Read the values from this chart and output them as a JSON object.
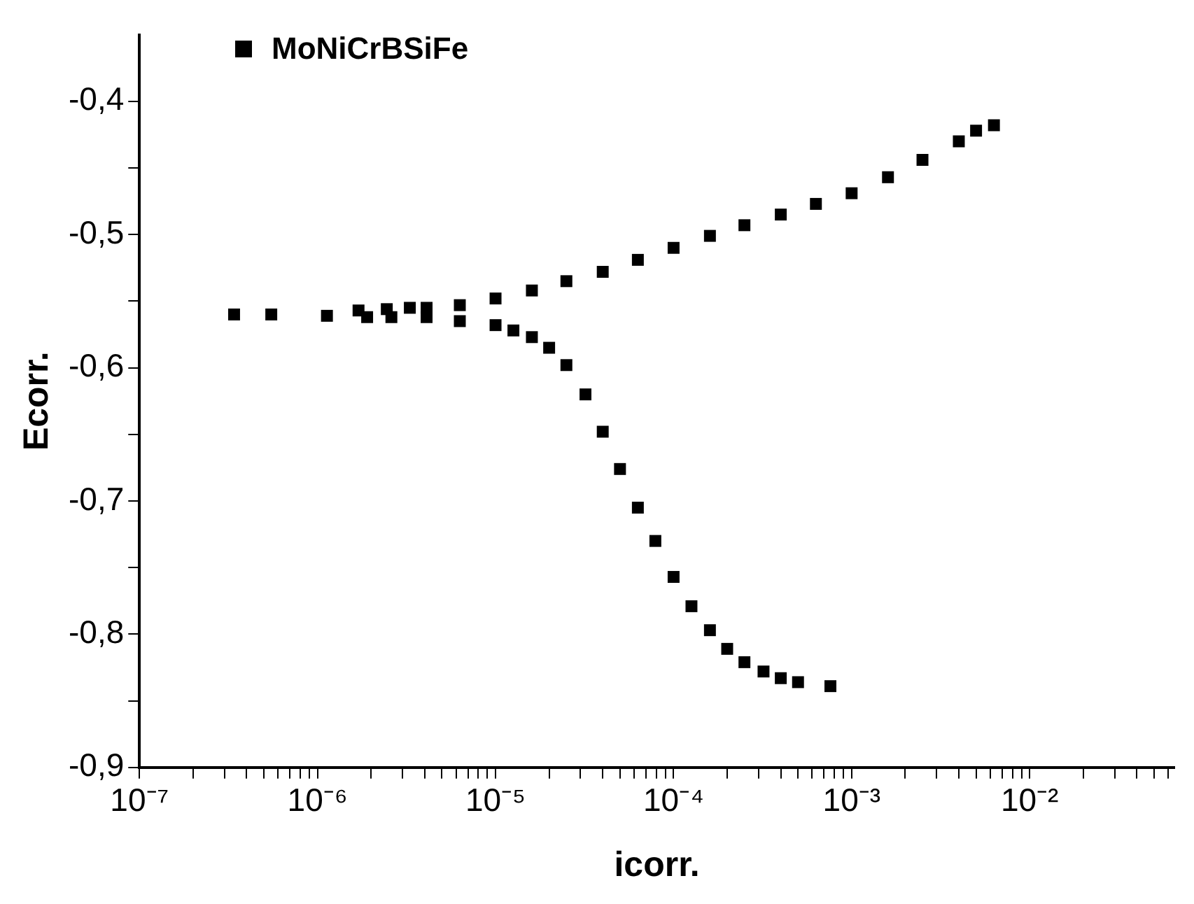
{
  "chart_data": {
    "type": "scatter",
    "xlabel": "icorr.",
    "ylabel": "Ecorr.",
    "log": "x",
    "marker": "square",
    "legend": "top left",
    "grid": false,
    "xlim": [
      1e-07,
      0.065
    ],
    "ylim": [
      -0.9,
      -0.35
    ],
    "xticks": [
      {
        "value": 1e-07,
        "label": "10⁻⁷"
      },
      {
        "value": 2e-07,
        "label": null
      },
      {
        "value": 3e-07,
        "label": null
      },
      {
        "value": 4e-07,
        "label": null
      },
      {
        "value": 5e-07,
        "label": null
      },
      {
        "value": 6e-07,
        "label": null
      },
      {
        "value": 7e-07,
        "label": null
      },
      {
        "value": 8e-07,
        "label": null
      },
      {
        "value": 9e-07,
        "label": null
      },
      {
        "value": 1e-06,
        "label": "10⁻⁶"
      },
      {
        "value": 2e-06,
        "label": null
      },
      {
        "value": 3e-06,
        "label": null
      },
      {
        "value": 4e-06,
        "label": null
      },
      {
        "value": 5e-06,
        "label": null
      },
      {
        "value": 6e-06,
        "label": null
      },
      {
        "value": 7e-06,
        "label": null
      },
      {
        "value": 8e-06,
        "label": null
      },
      {
        "value": 9e-06,
        "label": null
      },
      {
        "value": 1e-05,
        "label": "10⁻⁵"
      },
      {
        "value": 2e-05,
        "label": null
      },
      {
        "value": 3e-05,
        "label": null
      },
      {
        "value": 4e-05,
        "label": null
      },
      {
        "value": 5e-05,
        "label": null
      },
      {
        "value": 6e-05,
        "label": null
      },
      {
        "value": 7e-05,
        "label": null
      },
      {
        "value": 8e-05,
        "label": null
      },
      {
        "value": 9e-05,
        "label": null
      },
      {
        "value": 0.0001,
        "label": "10⁻⁴"
      },
      {
        "value": 0.0002,
        "label": null
      },
      {
        "value": 0.0003,
        "label": null
      },
      {
        "value": 0.0004,
        "label": null
      },
      {
        "value": 0.0005,
        "label": null
      },
      {
        "value": 0.0006,
        "label": null
      },
      {
        "value": 0.0007,
        "label": null
      },
      {
        "value": 0.0008,
        "label": null
      },
      {
        "value": 0.0009,
        "label": null
      },
      {
        "value": 0.001,
        "label": "10⁻³"
      },
      {
        "value": 0.002,
        "label": null
      },
      {
        "value": 0.003,
        "label": null
      },
      {
        "value": 0.004,
        "label": null
      },
      {
        "value": 0.005,
        "label": null
      },
      {
        "value": 0.006,
        "label": null
      },
      {
        "value": 0.007,
        "label": null
      },
      {
        "value": 0.008,
        "label": null
      },
      {
        "value": 0.009,
        "label": null
      },
      {
        "value": 0.01,
        "label": "10⁻²"
      },
      {
        "value": 0.02,
        "label": null
      },
      {
        "value": 0.03,
        "label": null
      },
      {
        "value": 0.04,
        "label": null
      },
      {
        "value": 0.05,
        "label": null
      },
      {
        "value": 0.06,
        "label": null
      }
    ],
    "yticks": [
      {
        "value": -0.9,
        "label": "-0,9"
      },
      {
        "value": -0.85,
        "label": null
      },
      {
        "value": -0.8,
        "label": "-0,8"
      },
      {
        "value": -0.75,
        "label": null
      },
      {
        "value": -0.7,
        "label": "-0,7"
      },
      {
        "value": -0.65,
        "label": null
      },
      {
        "value": -0.6,
        "label": "-0,6"
      },
      {
        "value": -0.55,
        "label": null
      },
      {
        "value": -0.5,
        "label": "-0,5"
      },
      {
        "value": -0.45,
        "label": null
      },
      {
        "value": -0.4,
        "label": "-0,4"
      }
    ],
    "series": [
      {
        "name": "MoNiCrBSiFe",
        "color": "#000000",
        "x": [
          3.4e-07,
          5.5e-07,
          1.13e-06,
          1.7e-06,
          1.9e-06,
          2.45e-06,
          2.6e-06,
          3.3e-06,
          4.1e-06,
          6.3e-06,
          1e-05,
          1.6e-05,
          2.5e-05,
          4e-05,
          6.3e-05,
          0.0001,
          0.00016,
          0.00025,
          0.0004,
          0.00063,
          0.001,
          0.0016,
          0.0025,
          0.004,
          0.005,
          0.0063,
          4.1e-06,
          6.3e-06,
          1e-05,
          1.26e-05,
          1.6e-05,
          2e-05,
          2.5e-05,
          3.2e-05,
          4e-05,
          5e-05,
          6.3e-05,
          7.9e-05,
          0.0001,
          0.000126,
          0.00016,
          0.0002,
          0.00025,
          0.00032,
          0.0004,
          0.0005,
          0.00076
        ],
        "values": [
          -0.56,
          -0.56,
          -0.561,
          -0.557,
          -0.562,
          -0.556,
          -0.562,
          -0.555,
          -0.555,
          -0.553,
          -0.548,
          -0.542,
          -0.535,
          -0.528,
          -0.519,
          -0.51,
          -0.501,
          -0.493,
          -0.485,
          -0.477,
          -0.469,
          -0.457,
          -0.444,
          -0.43,
          -0.422,
          -0.418,
          -0.562,
          -0.565,
          -0.568,
          -0.572,
          -0.577,
          -0.585,
          -0.598,
          -0.62,
          -0.648,
          -0.676,
          -0.705,
          -0.73,
          -0.757,
          -0.779,
          -0.797,
          -0.811,
          -0.821,
          -0.828,
          -0.833,
          -0.836,
          -0.839
        ]
      }
    ]
  }
}
